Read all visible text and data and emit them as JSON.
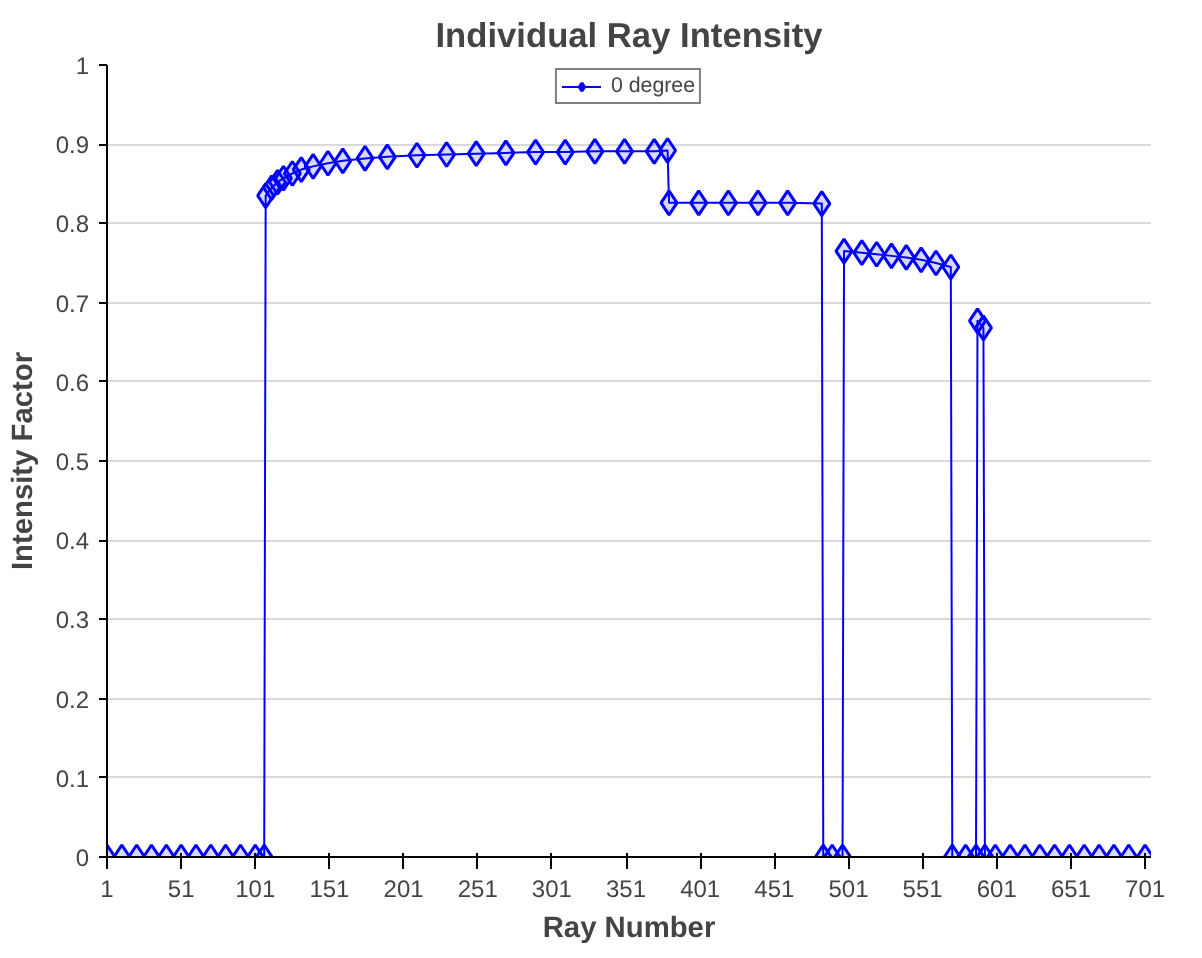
{
  "chart_data": {
    "type": "line",
    "title": "Individual Ray Intensity",
    "xlabel": "Ray Number",
    "ylabel": "Intensity Factor",
    "x": [
      1,
      11,
      21,
      31,
      41,
      51,
      61,
      71,
      81,
      91,
      101,
      107,
      108,
      112,
      116,
      120,
      126,
      132,
      140,
      150,
      160,
      175,
      190,
      210,
      230,
      250,
      270,
      290,
      310,
      330,
      350,
      370,
      379,
      380,
      400,
      420,
      440,
      460,
      483,
      484,
      490,
      497,
      498,
      510,
      520,
      530,
      540,
      550,
      560,
      570,
      571,
      580,
      587,
      588,
      592,
      593,
      600,
      610,
      620,
      630,
      640,
      650,
      660,
      670,
      680,
      690,
      701
    ],
    "series": [
      {
        "name": "0 degree",
        "color": "#0000ff",
        "values": [
          0,
          0,
          0,
          0,
          0,
          0,
          0,
          0,
          0,
          0,
          0,
          0,
          0.835,
          0.845,
          0.852,
          0.857,
          0.863,
          0.868,
          0.872,
          0.876,
          0.879,
          0.882,
          0.884,
          0.886,
          0.887,
          0.888,
          0.889,
          0.89,
          0.89,
          0.891,
          0.891,
          0.891,
          0.892,
          0.826,
          0.826,
          0.826,
          0.826,
          0.826,
          0.825,
          0,
          0,
          0,
          0.765,
          0.763,
          0.761,
          0.759,
          0.757,
          0.754,
          0.75,
          0.745,
          0,
          0,
          0,
          0.677,
          0.668,
          0,
          0,
          0,
          0,
          0,
          0,
          0,
          0,
          0,
          0,
          0,
          0
        ]
      }
    ],
    "xlim": [
      1,
      705
    ],
    "xticks": [
      1,
      51,
      101,
      151,
      201,
      251,
      301,
      351,
      401,
      451,
      501,
      551,
      601,
      651,
      701
    ],
    "ylim": [
      0,
      1
    ],
    "yticks": [
      0,
      0.1,
      0.2,
      0.3,
      0.4,
      0.5,
      0.6,
      0.7,
      0.8,
      0.9,
      1
    ],
    "grid": "y",
    "legend": "top",
    "marker": "diamond",
    "line_style": "solid"
  }
}
